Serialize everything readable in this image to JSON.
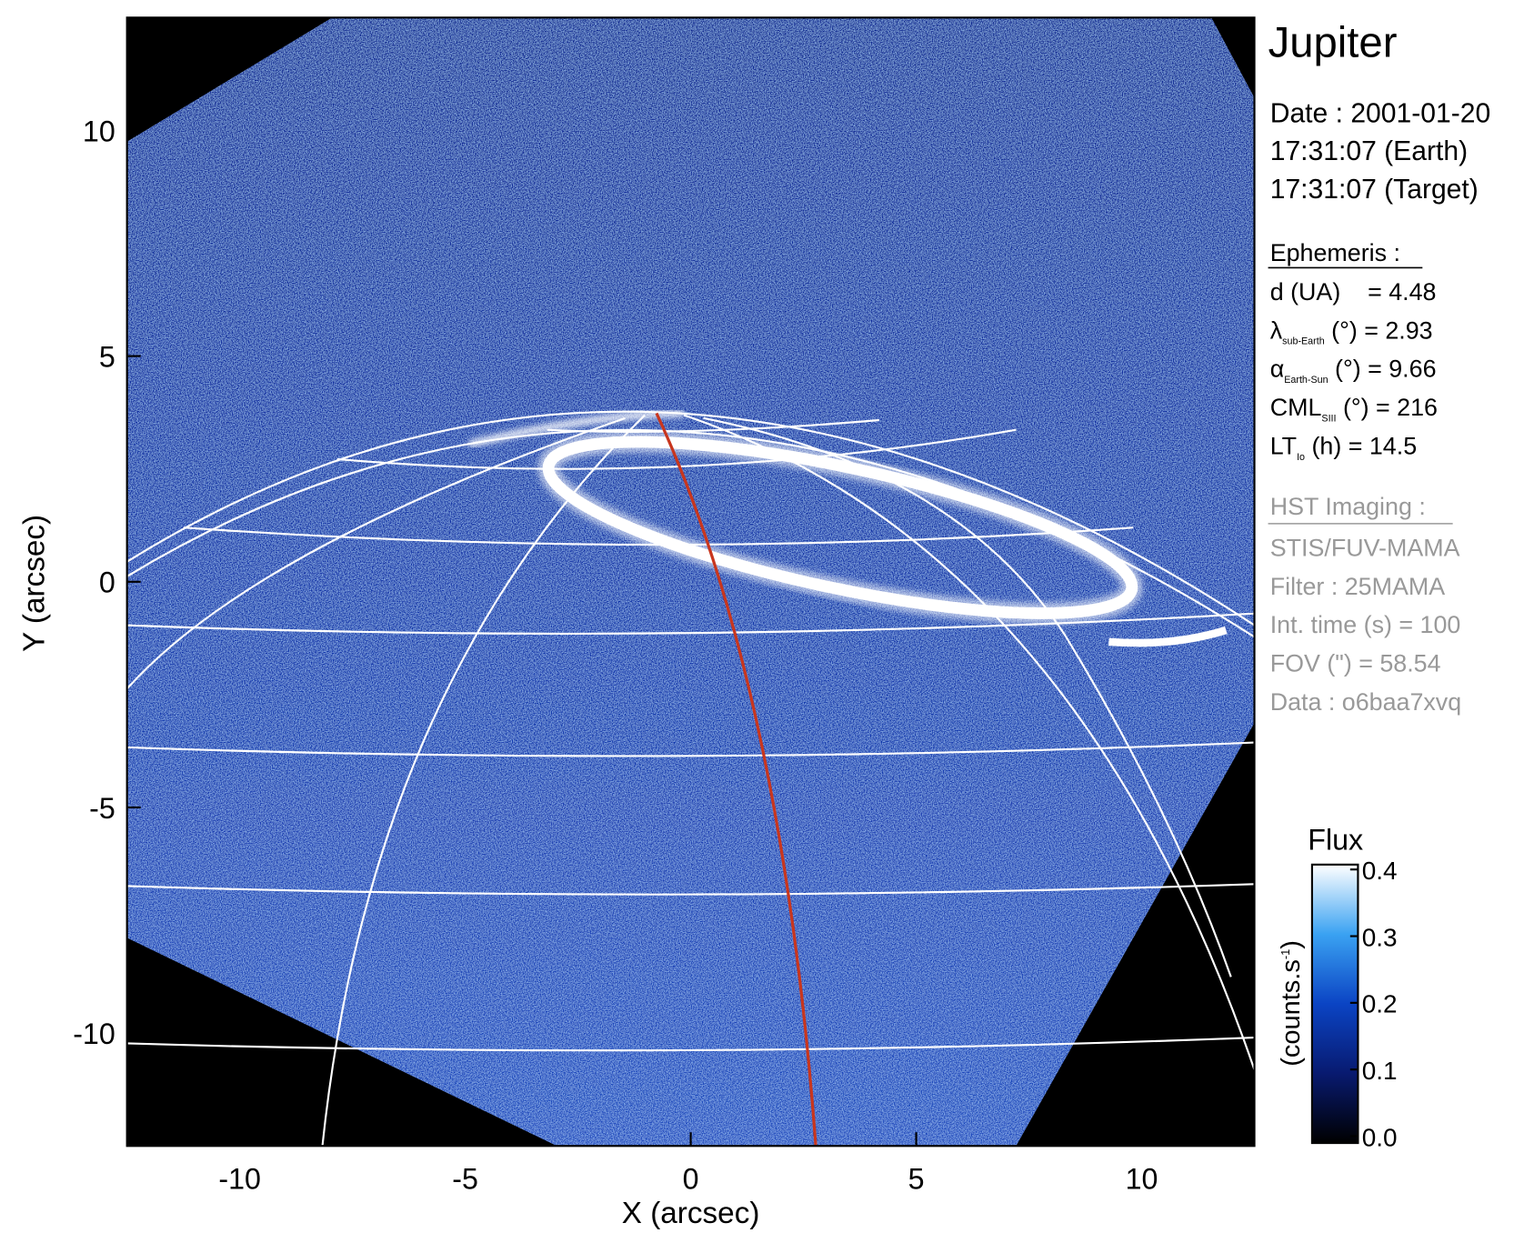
{
  "chart_data": {
    "type": "image",
    "title": "Jupiter",
    "xlabel": "X (arcsec)",
    "ylabel": "Y (arcsec)",
    "xlim": [
      -12.5,
      12.5
    ],
    "ylim": [
      -12.5,
      12.5
    ],
    "xticks": [
      -10,
      -5,
      0,
      5,
      10
    ],
    "yticks": [
      -10,
      -5,
      0,
      5,
      10
    ],
    "info": {
      "date_lines": [
        "Date : 2001-01-20",
        "17:31:07 (Earth)",
        "17:31:07 (Target)"
      ],
      "ephemeris_title": "Ephemeris :",
      "ephemeris": [
        "d (UA)    = 4.48",
        {
          "symbol": "λ",
          "sub": "sub-Earth",
          "rest": " (°) = 2.93"
        },
        {
          "symbol": "α",
          "sub": "Earth-Sun",
          "rest": " (°) = 9.66"
        },
        {
          "symbol": "CML",
          "sub": "SIII",
          "rest": " (°) = 216"
        },
        {
          "symbol": "LT",
          "sub": "Io",
          "rest": " (h) = 14.5"
        }
      ],
      "imaging_title": "HST Imaging :",
      "imaging": [
        "STIS/FUV-MAMA",
        "Filter : 25MAMA",
        "Int. time (s) = 100",
        "FOV (\") = 58.54",
        "Data : o6baa7xvq"
      ]
    },
    "colorbar": {
      "title": "Flux",
      "label": [
        "(counts.s",
        "-1",
        ")"
      ],
      "lim": [
        0,
        0.4
      ],
      "ticks": [
        {
          "value": 0,
          "label": "0.0"
        },
        0.1,
        0.2,
        0.3,
        0.4
      ],
      "colormap": [
        "#000000",
        "#081a70",
        "#0b44c4",
        "#3aa2f2",
        "#ffffff"
      ]
    }
  }
}
